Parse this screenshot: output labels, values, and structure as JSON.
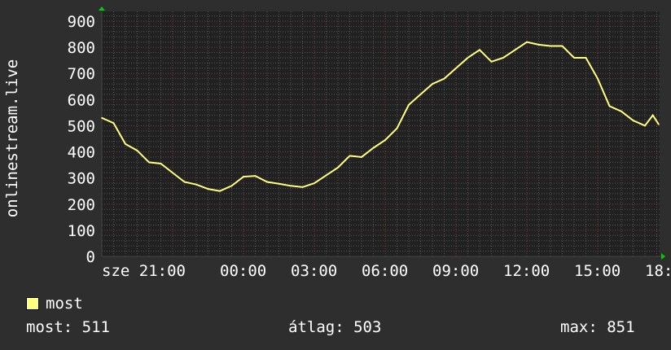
{
  "chart_data": {
    "type": "line",
    "ylabel": "onlinestream.live",
    "ylim": [
      0,
      900
    ],
    "yticks": [
      0,
      100,
      200,
      300,
      400,
      500,
      600,
      700,
      800,
      900
    ],
    "xticks": [
      "sze 21:00",
      "00:00",
      "03:00",
      "06:00",
      "09:00",
      "12:00",
      "15:00",
      "18:00"
    ],
    "grid": true,
    "series": [
      {
        "name": "most",
        "color": "#ffff80",
        "x": [
          "18:00",
          "18:30",
          "19:00",
          "19:30",
          "20:00",
          "20:30",
          "21:00",
          "21:30",
          "22:00",
          "22:30",
          "23:00",
          "23:30",
          "00:00",
          "00:30",
          "01:00",
          "01:30",
          "02:00",
          "02:30",
          "03:00",
          "03:30",
          "04:00",
          "04:30",
          "05:00",
          "05:30",
          "06:00",
          "06:30",
          "07:00",
          "07:30",
          "08:00",
          "08:30",
          "09:00",
          "09:30",
          "10:00",
          "10:30",
          "11:00",
          "11:30",
          "12:00",
          "12:30",
          "13:00",
          "13:30",
          "14:00",
          "14:30",
          "15:00",
          "15:30",
          "16:00",
          "16:30",
          "17:00",
          "17:20",
          "17:35"
        ],
        "values": [
          530,
          510,
          430,
          405,
          360,
          355,
          320,
          285,
          275,
          258,
          250,
          270,
          305,
          308,
          285,
          278,
          270,
          265,
          280,
          310,
          340,
          385,
          380,
          415,
          445,
          490,
          580,
          620,
          660,
          680,
          720,
          760,
          790,
          745,
          760,
          790,
          820,
          810,
          805,
          805,
          760,
          760,
          680,
          575,
          555,
          520,
          500,
          540,
          505
        ]
      }
    ]
  },
  "legend": {
    "label": "most",
    "color": "#ffff80"
  },
  "stats": {
    "current": "most: 511",
    "average": "átlag: 503",
    "max": "max: 851"
  }
}
